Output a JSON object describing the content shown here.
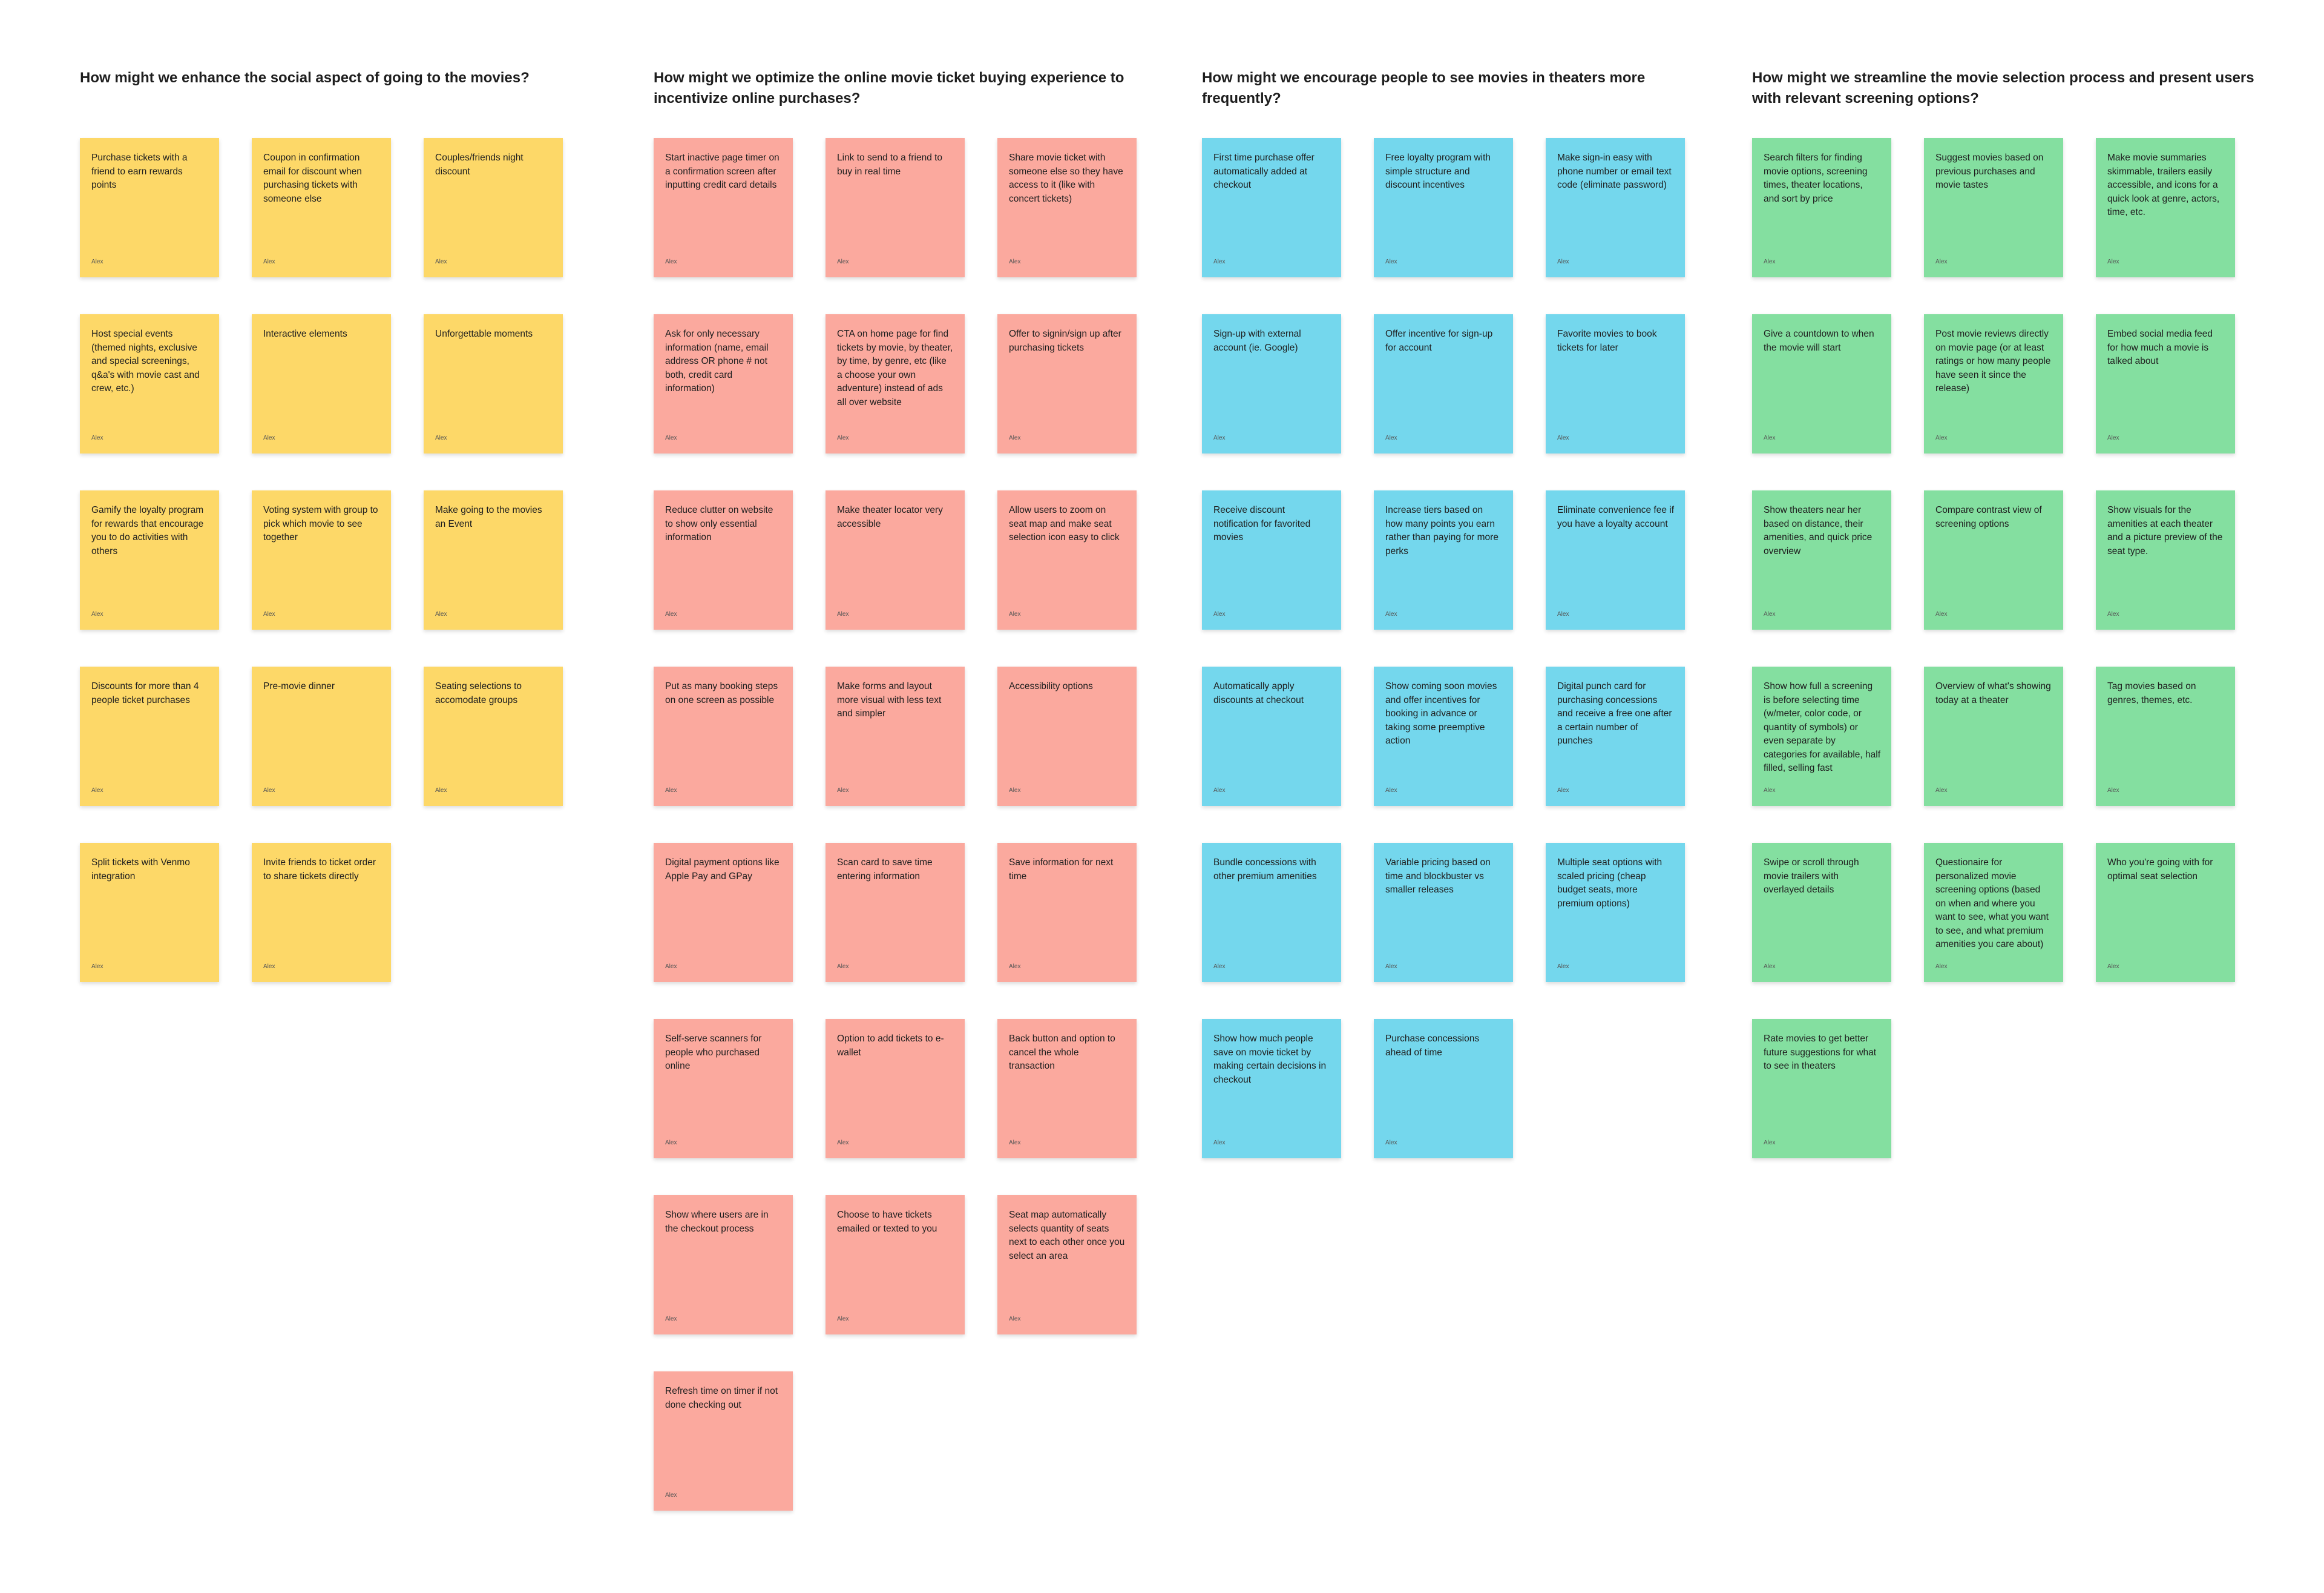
{
  "columns": [
    {
      "title": "How might we enhance the social aspect of going to the movies?",
      "rows": [
        [
          {
            "text": "Purchase tickets with a friend to earn rewards points",
            "author": "Alex"
          },
          {
            "text": "Coupon in confirmation email for discount when purchasing tickets with someone else",
            "author": "Alex"
          },
          {
            "text": "Couples/friends night discount",
            "author": "Alex"
          }
        ],
        [
          {
            "text": "Host special events (themed nights, exclusive and special screenings, q&a's with movie cast and crew, etc.)",
            "author": "Alex"
          },
          {
            "text": "Interactive elements",
            "author": "Alex"
          },
          {
            "text": "Unforgettable moments",
            "author": "Alex"
          }
        ],
        [
          {
            "text": "Gamify the loyalty program for rewards that encourage you to do activities with others",
            "author": "Alex"
          },
          {
            "text": "Voting system with group to pick which movie to see together",
            "author": "Alex"
          },
          {
            "text": "Make going to the movies an Event",
            "author": "Alex"
          }
        ],
        [
          {
            "text": "Discounts for more than 4 people ticket purchases",
            "author": "Alex"
          },
          {
            "text": "Pre-movie dinner",
            "author": "Alex"
          },
          {
            "text": "Seating selections to accomodate groups",
            "author": "Alex"
          }
        ],
        [
          {
            "text": "Split tickets with Venmo integration",
            "author": "Alex"
          },
          {
            "text": "Invite friends to ticket order to share tickets directly",
            "author": "Alex"
          }
        ]
      ]
    },
    {
      "title": "How might we optimize the online movie ticket buying experience to incentivize online purchases?",
      "rows": [
        [
          {
            "text": "Start inactive page timer on a confirmation screen after inputting credit card details",
            "author": "Alex"
          },
          {
            "text": "Link to send to a friend to buy in real time",
            "author": "Alex"
          },
          {
            "text": "Share movie ticket with someone else so they have access to it (like with concert tickets)",
            "author": "Alex"
          }
        ],
        [
          {
            "text": "Ask for only necessary information (name, email address OR phone # not both, credit card information)",
            "author": "Alex"
          },
          {
            "text": "CTA on home page for find tickets by movie, by theater, by time, by genre, etc (like a choose your own adventure) instead of ads all over website",
            "author": "Alex"
          },
          {
            "text": "Offer to signin/sign up after purchasing tickets",
            "author": "Alex"
          }
        ],
        [
          {
            "text": "Reduce clutter on website to show only essential information",
            "author": "Alex"
          },
          {
            "text": "Make theater locator very accessible",
            "author": "Alex"
          },
          {
            "text": "Allow users to zoom on seat map and make seat selection icon easy to click",
            "author": "Alex"
          }
        ],
        [
          {
            "text": "Put as many booking steps on one screen as possible",
            "author": "Alex"
          },
          {
            "text": "Make forms and layout more visual with less text and simpler",
            "author": "Alex"
          },
          {
            "text": "Accessibility options",
            "author": "Alex"
          }
        ],
        [
          {
            "text": "Digital payment options like Apple Pay and GPay",
            "author": "Alex"
          },
          {
            "text": "Scan card to save time entering information",
            "author": "Alex"
          },
          {
            "text": "Save information for next time",
            "author": "Alex"
          }
        ],
        [
          {
            "text": "Self-serve scanners for people who purchased online",
            "author": "Alex"
          },
          {
            "text": "Option to add tickets to e-wallet",
            "author": "Alex"
          },
          {
            "text": "Back button and option to cancel the whole transaction",
            "author": "Alex"
          }
        ],
        [
          {
            "text": "Show where users are in the checkout process",
            "author": "Alex"
          },
          {
            "text": "Choose to have tickets emailed or texted to you",
            "author": "Alex"
          },
          {
            "text": "Seat map automatically selects quantity of seats next to each other once you select an area",
            "author": "Alex"
          }
        ],
        [
          {
            "text": "Refresh time on timer if not done checking out",
            "author": "Alex"
          }
        ]
      ]
    },
    {
      "title": "How might we encourage people to see movies in theaters more frequently?",
      "rows": [
        [
          {
            "text": "First time purchase offer automatically added at checkout",
            "author": "Alex"
          },
          {
            "text": "Free loyalty program with simple structure and discount incentives",
            "author": "Alex"
          },
          {
            "text": "Make sign-in easy with phone number or email text code (eliminate password)",
            "author": "Alex"
          }
        ],
        [
          {
            "text": "Sign-up with external account (ie. Google)",
            "author": "Alex"
          },
          {
            "text": "Offer incentive for sign-up for account",
            "author": "Alex"
          },
          {
            "text": "Favorite movies to book tickets for later",
            "author": "Alex"
          }
        ],
        [
          {
            "text": "Receive discount notification for favorited movies",
            "author": "Alex"
          },
          {
            "text": "Increase tiers based on how many points you earn rather than paying for more perks",
            "author": "Alex"
          },
          {
            "text": "Eliminate convenience fee if you have a loyalty account",
            "author": "Alex"
          }
        ],
        [
          {
            "text": "Automatically apply discounts at checkout",
            "author": "Alex"
          },
          {
            "text": "Show coming soon movies and offer incentives for booking in advance or taking some preemptive action",
            "author": "Alex"
          },
          {
            "text": "Digital punch card for purchasing concessions and receive a free one after a certain number of punches",
            "author": "Alex"
          }
        ],
        [
          {
            "text": "Bundle concessions with other premium amenities",
            "author": "Alex"
          },
          {
            "text": "Variable pricing based on time and blockbuster vs smaller releases",
            "author": "Alex"
          },
          {
            "text": "Multiple seat options with scaled pricing (cheap budget seats, more premium options)",
            "author": "Alex"
          }
        ],
        [
          {
            "text": "Show how much people save on movie ticket by making certain decisions in checkout",
            "author": "Alex"
          },
          {
            "text": "Purchase concessions ahead of time",
            "author": "Alex"
          }
        ]
      ]
    },
    {
      "title": "How might we streamline the movie selection process and present users with relevant screening options?",
      "rows": [
        [
          {
            "text": "Search filters for finding movie options, screening times, theater locations, and sort by price",
            "author": "Alex"
          },
          {
            "text": "Suggest movies based on previous purchases and movie tastes",
            "author": "Alex"
          },
          {
            "text": "Make movie summaries skimmable, trailers easily accessible, and icons for a quick look at genre, actors, time, etc.",
            "author": "Alex"
          }
        ],
        [
          {
            "text": "Give a countdown to when the movie will start",
            "author": "Alex"
          },
          {
            "text": "Post movie reviews directly on movie page (or at least ratings or how many people have seen it since the release)",
            "author": "Alex"
          },
          {
            "text": "Embed social media feed for how much a movie is talked about",
            "author": "Alex"
          }
        ],
        [
          {
            "text": "Show theaters near her based on distance, their amenities, and quick price overview",
            "author": "Alex"
          },
          {
            "text": "Compare contrast view of screening options",
            "author": "Alex"
          },
          {
            "text": "Show visuals for the amenities at each theater and a picture preview of the seat type.",
            "author": "Alex"
          }
        ],
        [
          {
            "text": "Show how full a screening is before selecting time (w/meter, color code, or quantity of symbols) or even separate by categories for available, half filled, selling fast",
            "author": "Alex"
          },
          {
            "text": "Overview of what's showing today at a theater",
            "author": "Alex"
          },
          {
            "text": "Tag movies based on genres, themes, etc.",
            "author": "Alex"
          }
        ],
        [
          {
            "text": "Swipe or scroll through movie trailers with overlayed details",
            "author": "Alex"
          },
          {
            "text": "Questionaire for personalized movie screening options (based on when and where you want to see, what you want to see, and what premium amenities you care about)",
            "author": "Alex"
          },
          {
            "text": "Who you're going with for optimal seat selection",
            "author": "Alex"
          }
        ],
        [
          {
            "text": "Rate movies to get better future suggestions for what to see in theaters",
            "author": "Alex"
          }
        ]
      ]
    }
  ]
}
